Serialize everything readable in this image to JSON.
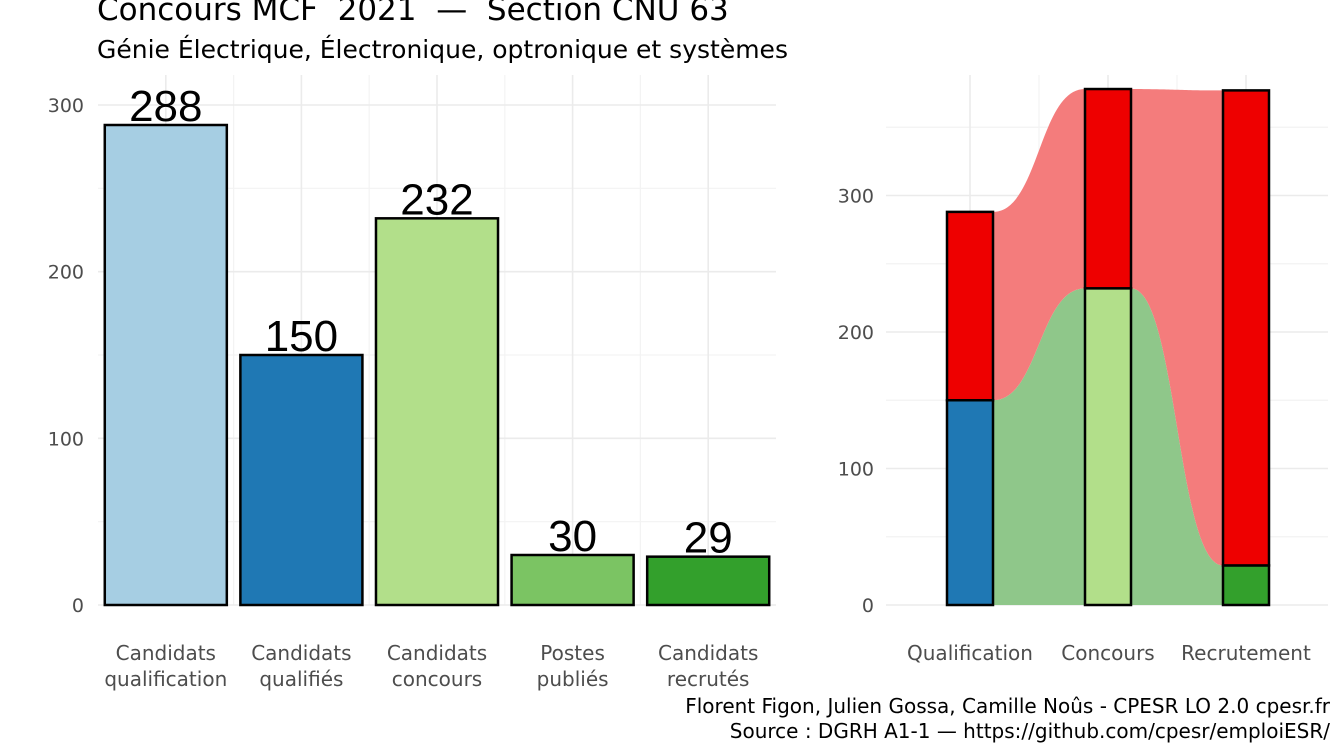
{
  "header": {
    "title": "Concours MCF  2021  —  Section CNU 63",
    "subtitle": "Génie Électrique, Électronique, optronique et systèmes"
  },
  "caption": {
    "line1": "Florent Figon, Julien Gossa, Camille Noûs - CPESR LO 2.0 cpesr.fr",
    "line2": "Source : DGRH A1-1 — https://github.com/cpesr/emploiESR/"
  },
  "chart_data": [
    {
      "type": "bar",
      "categories": [
        [
          "Candidats",
          "qualification"
        ],
        [
          "Candidats",
          "qualifiés"
        ],
        [
          "Candidats",
          "concours"
        ],
        [
          "Postes",
          "publiés"
        ],
        [
          "Candidats",
          "recrutés"
        ]
      ],
      "values": [
        288,
        150,
        232,
        30,
        29
      ],
      "colors": [
        "#a6cee3",
        "#1f78b4",
        "#b2df8a",
        "#7bc463",
        "#33a02c"
      ],
      "ylim": [
        0,
        300
      ],
      "yticks": [
        0,
        100,
        200,
        300
      ],
      "data_labels": true,
      "grid": true
    },
    {
      "type": "bar",
      "stacked": true,
      "categories": [
        "Qualification",
        "Concours",
        "Recrutement"
      ],
      "series": [
        {
          "values": [
            150,
            232,
            29
          ],
          "colors": [
            "#1f78b4",
            "#b2df8a",
            "#33a02c"
          ]
        },
        {
          "values": [
            138,
            146,
            348
          ],
          "colors": [
            "#ee0000",
            "#ee0000",
            "#ee0000"
          ]
        }
      ],
      "flows": [
        {
          "color": "#8fc78a",
          "from_stage_bands": [
            [
              0,
              150
            ],
            [
              0,
              232
            ],
            [
              0,
              29
            ]
          ]
        },
        {
          "color": "#f47c7c",
          "from_stage_bands": [
            [
              150,
              288
            ],
            [
              232,
              378
            ],
            [
              29,
              377
            ]
          ]
        }
      ],
      "ylim": [
        0,
        378
      ],
      "yticks": [
        0,
        100,
        200,
        300
      ],
      "grid": true
    }
  ]
}
